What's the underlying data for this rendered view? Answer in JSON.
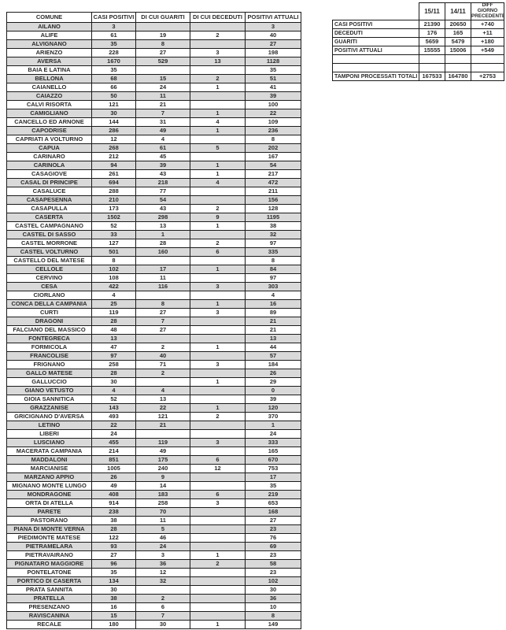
{
  "main_table": {
    "headers": [
      "COMUNE",
      "CASI POSITIVI",
      "DI CUI GUARITI",
      "DI CUI DECEDUTI",
      "POSITIVI ATTUALI"
    ],
    "rows": [
      [
        "AILANO",
        "3",
        "",
        "",
        "3"
      ],
      [
        "ALIFE",
        "61",
        "19",
        "2",
        "40"
      ],
      [
        "ALVIGNANO",
        "35",
        "8",
        "",
        "27"
      ],
      [
        "ARIENZO",
        "228",
        "27",
        "3",
        "198"
      ],
      [
        "AVERSA",
        "1670",
        "529",
        "13",
        "1128"
      ],
      [
        "BAIA E LATINA",
        "35",
        "",
        "",
        "35"
      ],
      [
        "BELLONA",
        "68",
        "15",
        "2",
        "51"
      ],
      [
        "CAIANELLO",
        "66",
        "24",
        "1",
        "41"
      ],
      [
        "CAIAZZO",
        "50",
        "11",
        "",
        "39"
      ],
      [
        "CALVI RISORTA",
        "121",
        "21",
        "",
        "100"
      ],
      [
        "CAMIGLIANO",
        "30",
        "7",
        "1",
        "22"
      ],
      [
        "CANCELLO ED ARNONE",
        "144",
        "31",
        "4",
        "109"
      ],
      [
        "CAPODRISE",
        "286",
        "49",
        "1",
        "236"
      ],
      [
        "CAPRIATI A VOLTURNO",
        "12",
        "4",
        "",
        "8"
      ],
      [
        "CAPUA",
        "268",
        "61",
        "5",
        "202"
      ],
      [
        "CARINARO",
        "212",
        "45",
        "",
        "167"
      ],
      [
        "CARINOLA",
        "94",
        "39",
        "1",
        "54"
      ],
      [
        "CASAGIOVE",
        "261",
        "43",
        "1",
        "217"
      ],
      [
        "CASAL DI PRINCIPE",
        "694",
        "218",
        "4",
        "472"
      ],
      [
        "CASALUCE",
        "288",
        "77",
        "",
        "211"
      ],
      [
        "CASAPESENNA",
        "210",
        "54",
        "",
        "156"
      ],
      [
        "CASAPULLA",
        "173",
        "43",
        "2",
        "128"
      ],
      [
        "CASERTA",
        "1502",
        "298",
        "9",
        "1195"
      ],
      [
        "CASTEL CAMPAGNANO",
        "52",
        "13",
        "1",
        "38"
      ],
      [
        "CASTEL DI SASSO",
        "33",
        "1",
        "",
        "32"
      ],
      [
        "CASTEL MORRONE",
        "127",
        "28",
        "2",
        "97"
      ],
      [
        "CASTEL VOLTURNO",
        "501",
        "160",
        "6",
        "335"
      ],
      [
        "CASTELLO DEL MATESE",
        "8",
        "",
        "",
        "8"
      ],
      [
        "CELLOLE",
        "102",
        "17",
        "1",
        "84"
      ],
      [
        "CERVINO",
        "108",
        "11",
        "",
        "97"
      ],
      [
        "CESA",
        "422",
        "116",
        "3",
        "303"
      ],
      [
        "CIORLANO",
        "4",
        "",
        "",
        "4"
      ],
      [
        "CONCA DELLA CAMPANIA",
        "25",
        "8",
        "1",
        "16"
      ],
      [
        "CURTI",
        "119",
        "27",
        "3",
        "89"
      ],
      [
        "DRAGONI",
        "28",
        "7",
        "",
        "21"
      ],
      [
        "FALCIANO DEL MASSICO",
        "48",
        "27",
        "",
        "21"
      ],
      [
        "FONTEGRECA",
        "13",
        "",
        "",
        "13"
      ],
      [
        "FORMICOLA",
        "47",
        "2",
        "1",
        "44"
      ],
      [
        "FRANCOLISE",
        "97",
        "40",
        "",
        "57"
      ],
      [
        "FRIGNANO",
        "258",
        "71",
        "3",
        "184"
      ],
      [
        "GALLO MATESE",
        "28",
        "2",
        "",
        "26"
      ],
      [
        "GALLUCCIO",
        "30",
        "",
        "1",
        "29"
      ],
      [
        "GIANO VETUSTO",
        "4",
        "4",
        "",
        "0"
      ],
      [
        "GIOIA SANNITICA",
        "52",
        "13",
        "",
        "39"
      ],
      [
        "GRAZZANISE",
        "143",
        "22",
        "1",
        "120"
      ],
      [
        "GRICIGNANO D'AVERSA",
        "493",
        "121",
        "2",
        "370"
      ],
      [
        "LETINO",
        "22",
        "21",
        "",
        "1"
      ],
      [
        "LIBERI",
        "24",
        "",
        "",
        "24"
      ],
      [
        "LUSCIANO",
        "455",
        "119",
        "3",
        "333"
      ],
      [
        "MACERATA CAMPANIA",
        "214",
        "49",
        "",
        "165"
      ],
      [
        "MADDALONI",
        "851",
        "175",
        "6",
        "670"
      ],
      [
        "MARCIANISE",
        "1005",
        "240",
        "12",
        "753"
      ],
      [
        "MARZANO APPIO",
        "26",
        "9",
        "",
        "17"
      ],
      [
        "MIGNANO MONTE LUNGO",
        "49",
        "14",
        "",
        "35"
      ],
      [
        "MONDRAGONE",
        "408",
        "183",
        "6",
        "219"
      ],
      [
        "ORTA DI ATELLA",
        "914",
        "258",
        "3",
        "653"
      ],
      [
        "PARETE",
        "238",
        "70",
        "",
        "168"
      ],
      [
        "PASTORANO",
        "38",
        "11",
        "",
        "27"
      ],
      [
        "PIANA DI MONTE VERNA",
        "28",
        "5",
        "",
        "23"
      ],
      [
        "PIEDIMONTE MATESE",
        "122",
        "46",
        "",
        "76"
      ],
      [
        "PIETRAMELARA",
        "93",
        "24",
        "",
        "69"
      ],
      [
        "PIETRAVAIRANO",
        "27",
        "3",
        "1",
        "23"
      ],
      [
        "PIGNATARO MAGGIORE",
        "96",
        "36",
        "2",
        "58"
      ],
      [
        "PONTELATONE",
        "35",
        "12",
        "",
        "23"
      ],
      [
        "PORTICO DI CASERTA",
        "134",
        "32",
        "",
        "102"
      ],
      [
        "PRATA SANNITA",
        "30",
        "",
        "",
        "30"
      ],
      [
        "PRATELLA",
        "38",
        "2",
        "",
        "36"
      ],
      [
        "PRESENZANO",
        "16",
        "6",
        "",
        "10"
      ],
      [
        "RAVISCANINA",
        "15",
        "7",
        "",
        "8"
      ],
      [
        "RECALE",
        "180",
        "30",
        "1",
        "149"
      ]
    ]
  },
  "summary_table": {
    "headers": [
      "",
      "15/11",
      "14/11",
      "DIFF GIORNO PRECEDENTE"
    ],
    "rows": [
      [
        "CASI POSITIVI",
        "21390",
        "20650",
        "+740"
      ],
      [
        "DECEDUTI",
        "176",
        "165",
        "+11"
      ],
      [
        "GUARITI",
        "5659",
        "5479",
        "+180"
      ],
      [
        "POSITIVI ATTUALI",
        "15555",
        "15006",
        "+549"
      ],
      [
        "",
        "",
        "",
        ""
      ],
      [
        "",
        "",
        "",
        ""
      ],
      [
        "TAMPONI PROCESSATI TOTALI",
        "167533",
        "164780",
        "+2753"
      ]
    ]
  },
  "colors": {
    "row_shade": "#d9d9d9",
    "border": "#1a1a1a",
    "text": "#2b2b2b",
    "background": "#ffffff"
  }
}
